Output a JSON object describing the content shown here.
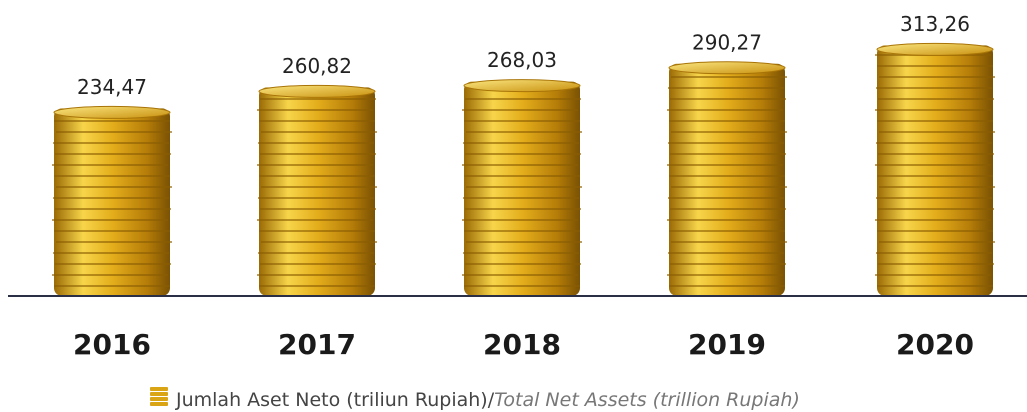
{
  "chart_data": {
    "type": "bar",
    "categories": [
      "2016",
      "2017",
      "2018",
      "2019",
      "2020"
    ],
    "series": [
      {
        "name": "Jumlah Aset Neto (triliun Rupiah)/Total Net Assets (trillion Rupiah)",
        "color": "#d9a514",
        "values": [
          234.47,
          260.82,
          268.03,
          290.27,
          313.26
        ],
        "value_labels": [
          "234,47",
          "260,82",
          "268,03",
          "290,27",
          "313,26"
        ]
      }
    ],
    "ylim": [
      0,
      340
    ]
  }
}
